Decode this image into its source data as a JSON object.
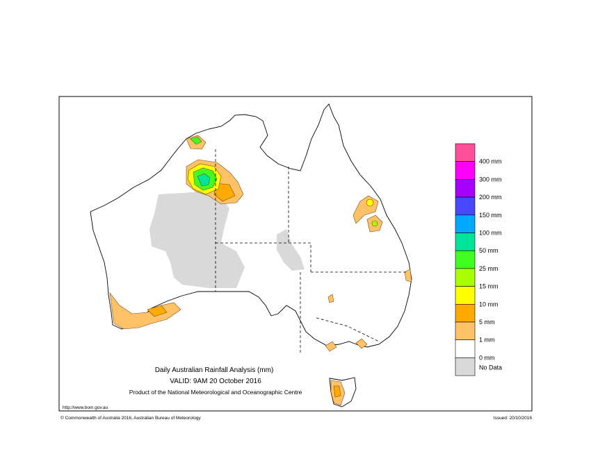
{
  "title": "Daily Australian Rainfall Analysis (mm)",
  "valid": "VALID: 9AM 20 October 2016",
  "product": "Product of the National Meteorological and Oceanographic Centre",
  "url": "http://www.bom.gov.au",
  "copyright": "© Commonwealth of Australia 2016, Australian Bureau of Meteorology",
  "issued": "Issued: 20/10/2016",
  "legend": [
    {
      "label": "400 mm",
      "color": "#ff509c"
    },
    {
      "label": "300 mm",
      "color": "#ff00ff"
    },
    {
      "label": "200 mm",
      "color": "#a600ff"
    },
    {
      "label": "150 mm",
      "color": "#4848ff"
    },
    {
      "label": "100 mm",
      "color": "#00a8ff"
    },
    {
      "label": "50 mm",
      "color": "#00e49a"
    },
    {
      "label": "25 mm",
      "color": "#40ff20"
    },
    {
      "label": "15 mm",
      "color": "#a8ff00"
    },
    {
      "label": "10 mm",
      "color": "#ffff00"
    },
    {
      "label": "5 mm",
      "color": "#ffaa00"
    },
    {
      "label": "1 mm",
      "color": "#ffc266"
    },
    {
      "label": "0 mm",
      "color": "#ffffff"
    },
    {
      "label": "No Data",
      "color": "#d9d9d9"
    }
  ]
}
